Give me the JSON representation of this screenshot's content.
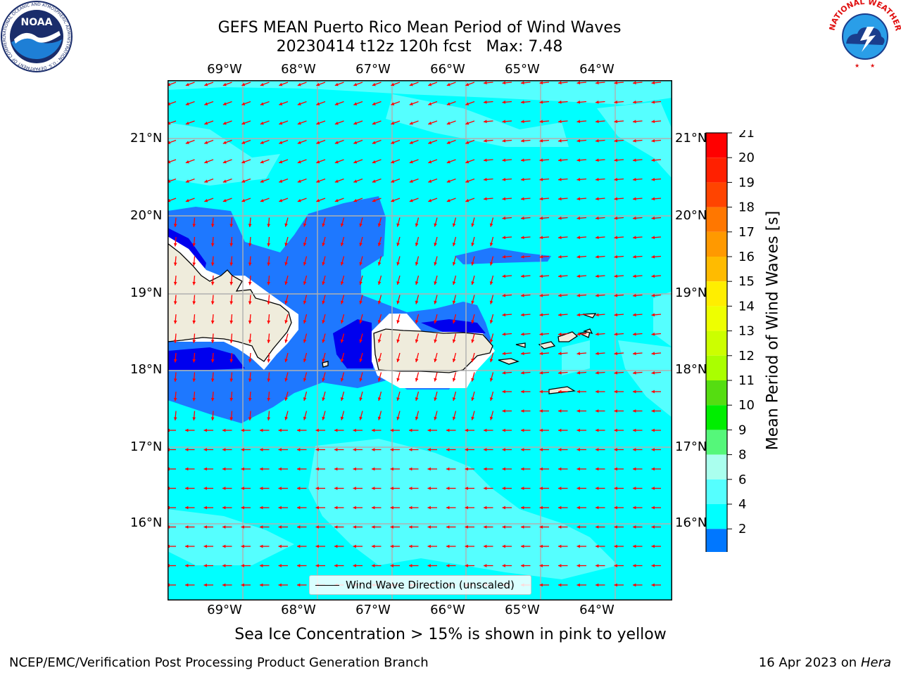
{
  "title": {
    "line1": "GEFS MEAN Puerto Rico Mean Period of Wind Waves",
    "line2": "20230414 t12z 120h fcst   Max: 7.48"
  },
  "map": {
    "lon_ticks": [
      "69°W",
      "68°W",
      "67°W",
      "66°W",
      "65°W",
      "64°W"
    ],
    "lat_ticks": [
      "21°N",
      "20°N",
      "19°N",
      "18°N",
      "17°N",
      "16°N"
    ],
    "land_color": "#efecdc",
    "arrow_color": "#ff0000",
    "vector_field": "Wind Wave Direction (unscaled)"
  },
  "legend": {
    "label": "Wind Wave Direction (unscaled)"
  },
  "colorbar": {
    "label": "Mean Period of Wind Waves [s]",
    "ticks": [
      "21",
      "20",
      "19",
      "18",
      "17",
      "16",
      "15",
      "14",
      "13",
      "12",
      "11",
      "10",
      "9",
      "8",
      "6",
      "4",
      "2"
    ],
    "colors": [
      "#ff0000",
      "#ff2000",
      "#ff4400",
      "#ff7700",
      "#ff9900",
      "#ffbb00",
      "#ffee00",
      "#eeff00",
      "#ccff00",
      "#aaff00",
      "#55dd11",
      "#00ee00",
      "#55f77a",
      "#aaffee",
      "#55ffff",
      "#00ffff",
      "#0077ff"
    ],
    "under_color": "#0000ee"
  },
  "note": "Sea Ice Concentration > 15% is shown in pink to yellow",
  "footer": {
    "credit": "NCEP/EMC/Verification Post Processing Product Generation Branch",
    "date": "16 Apr 2023 on ",
    "host": "Hera"
  },
  "logos": {
    "noaa": {
      "text": "NOAA",
      "ring_text": "NATIONAL OCEANIC AND ATMOSPHERIC ADMINISTRATION · U.S. DEPARTMENT OF COMMERCE"
    },
    "nws": {
      "ring_text": "NATIONAL WEATHER SERVICE"
    }
  }
}
